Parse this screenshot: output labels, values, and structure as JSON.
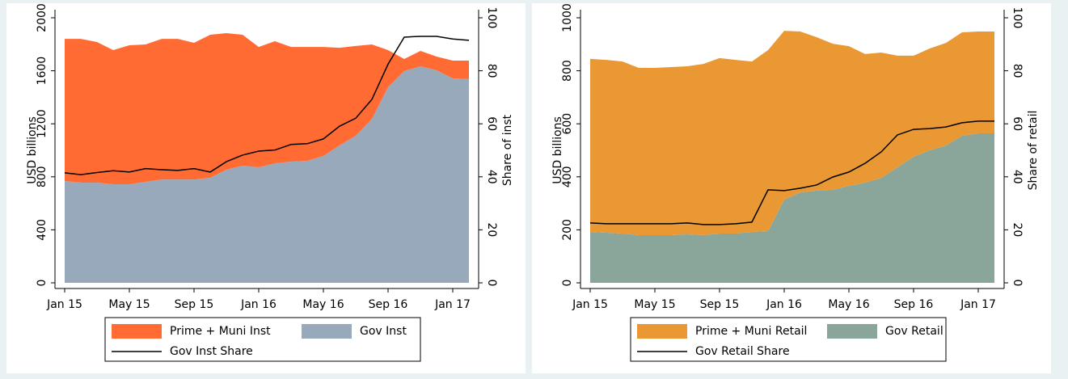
{
  "chart_data": [
    {
      "type": "area",
      "stacked": true,
      "y_label": "USD billions",
      "y2_label": "Share of inst",
      "categories": [
        "Jan 15",
        null,
        null,
        null,
        "May 15",
        null,
        null,
        null,
        "Sep 15",
        null,
        null,
        null,
        "Jan 16",
        null,
        null,
        null,
        "May 16",
        null,
        null,
        null,
        "Sep 16",
        null,
        null,
        null,
        "Jan 17",
        null
      ],
      "series": [
        {
          "name": "Prime + Muni Inst",
          "color": "#ff6b33",
          "values": [
            1073,
            1085,
            1061,
            1012,
            1049,
            1037,
            1061,
            1061,
            1031,
            1079,
            1030,
            988,
            908,
            921,
            865,
            859,
            823,
            737,
            677,
            561,
            280,
            91,
            116,
            103,
            134,
            140
          ]
        },
        {
          "name": "Gov Inst",
          "color": "#97a9ba",
          "values": [
            768,
            756,
            756,
            744,
            744,
            762,
            780,
            780,
            780,
            793,
            854,
            884,
            872,
            902,
            915,
            921,
            957,
            1037,
            1110,
            1238,
            1476,
            1598,
            1634,
            1604,
            1543,
            1537
          ]
        },
        {
          "name": "Gov Inst Share",
          "color": "#000000",
          "axis": "y2",
          "values": [
            41.5,
            40.8,
            41.6,
            42.3,
            41.8,
            43.1,
            42.7,
            42.4,
            43.1,
            41.8,
            45.7,
            48.2,
            49.7,
            50.1,
            52.2,
            52.5,
            54.3,
            59.1,
            62.1,
            69.2,
            82.5,
            92.7,
            93.0,
            93.0,
            92.0,
            91.5
          ]
        }
      ],
      "ylim": [
        0,
        2000
      ],
      "yticks": [
        0,
        400,
        800,
        1200,
        1600,
        2000
      ],
      "y2lim": [
        0,
        100
      ],
      "y2ticks": [
        0,
        20,
        40,
        60,
        80,
        100
      ]
    },
    {
      "type": "area",
      "stacked": true,
      "y_label": "USD billions",
      "y2_label": "Share of retail",
      "categories": [
        "Jan 15",
        null,
        null,
        null,
        "May 15",
        null,
        null,
        null,
        "Sep 15",
        null,
        null,
        null,
        "Jan 16",
        null,
        null,
        null,
        "May 16",
        null,
        null,
        null,
        "Sep 16",
        null,
        null,
        null,
        "Jan 17",
        null
      ],
      "series": [
        {
          "name": "Prime + Muni Retail",
          "color": "#e99833",
          "values": [
            653,
            652,
            649,
            631,
            631,
            634,
            634,
            646,
            662,
            655,
            643,
            683,
            637,
            607,
            579,
            551,
            527,
            485,
            473,
            421,
            381,
            384,
            387,
            390,
            384,
            384
          ]
        },
        {
          "name": "Gov Retail",
          "color": "#8aa69a",
          "values": [
            192,
            189,
            186,
            180,
            180,
            180,
            183,
            180,
            186,
            186,
            192,
            195,
            314,
            341,
            348,
            351,
            366,
            378,
            396,
            436,
            476,
            500,
            518,
            555,
            564,
            564
          ]
        },
        {
          "name": "Gov Retail Share",
          "color": "#000000",
          "axis": "y2",
          "values": [
            22.6,
            22.3,
            22.3,
            22.3,
            22.3,
            22.3,
            22.6,
            22.0,
            22.0,
            22.3,
            22.9,
            35.1,
            34.8,
            35.7,
            36.9,
            39.9,
            41.8,
            45.1,
            49.4,
            55.8,
            57.9,
            58.2,
            58.8,
            60.4,
            61.0,
            61.0
          ]
        }
      ],
      "ylim": [
        0,
        1000
      ],
      "yticks": [
        0,
        200,
        400,
        600,
        800,
        1000
      ],
      "y2lim": [
        0,
        100
      ],
      "y2ticks": [
        0,
        20,
        40,
        60,
        80,
        100
      ]
    }
  ]
}
